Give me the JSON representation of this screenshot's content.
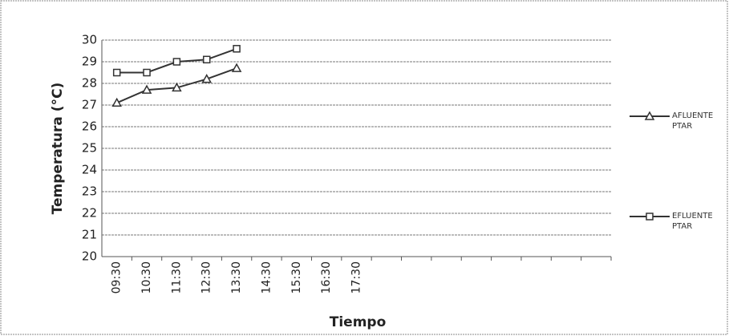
{
  "chart_data": {
    "type": "line",
    "x_label": "Tiempo",
    "y_label": "Temperatura (°C)",
    "categories": [
      "09:30",
      "10:30",
      "11:30",
      "12:30",
      "13:30",
      "14:30",
      "15:30",
      "16:30",
      "17:30",
      null,
      null,
      null,
      null,
      null,
      null,
      null,
      null
    ],
    "series": [
      {
        "name": "AFLUENTE PTAR",
        "color": "#333333",
        "marker": "triangle",
        "values": [
          27.1,
          27.7,
          27.8,
          28.2,
          28.7,
          null,
          null,
          null,
          null,
          null,
          null,
          null,
          null,
          null,
          null,
          null,
          null
        ]
      },
      {
        "name": "EFLUENTE PTAR",
        "color": "#333333",
        "marker": "square",
        "values": [
          28.5,
          28.5,
          29.0,
          29.1,
          29.6,
          null,
          null,
          null,
          null,
          null,
          null,
          null,
          null,
          null,
          null,
          null,
          null
        ]
      }
    ],
    "ylim": [
      20,
      30
    ],
    "yticks": [
      20,
      21,
      22,
      23,
      24,
      25,
      26,
      27,
      28,
      29,
      30
    ],
    "grid": true
  }
}
